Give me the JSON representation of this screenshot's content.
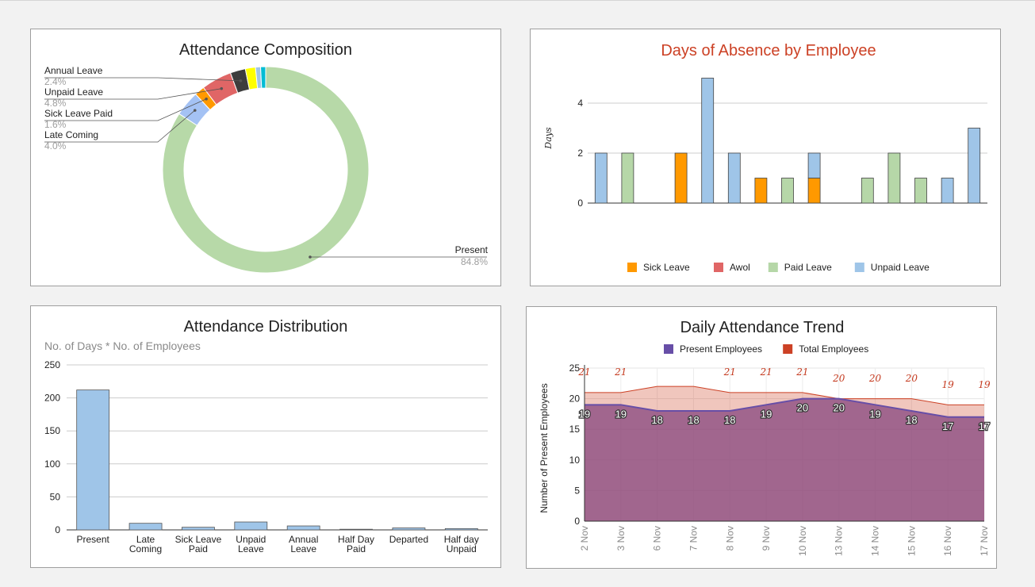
{
  "chart_data": [
    {
      "type": "pie",
      "title": "Attendance Composition",
      "donut": true,
      "slices": [
        {
          "label": "Present",
          "percent": "84.8%",
          "value": 84.8,
          "color": "#b7d9a8"
        },
        {
          "label": "Late Coming",
          "percent": "4.0%",
          "value": 4.0,
          "color": "#a4c2f4"
        },
        {
          "label": "Sick Leave Paid",
          "percent": "1.6%",
          "value": 1.6,
          "color": "#ff9900"
        },
        {
          "label": "Unpaid Leave",
          "percent": "4.8%",
          "value": 4.8,
          "color": "#e06666"
        },
        {
          "label": "Annual Leave",
          "percent": "2.4%",
          "value": 2.4,
          "color": "#3d3d3d"
        },
        {
          "label": "",
          "value": 1.6,
          "color": "#ffff00"
        },
        {
          "label": "",
          "value": 0.8,
          "color": "#9fc5e8"
        },
        {
          "label": "",
          "value": 0.8,
          "color": "#00bcd4"
        }
      ],
      "callouts": [
        "Annual Leave",
        "Unpaid Leave",
        "Sick Leave Paid",
        "Late Coming",
        "Present"
      ]
    },
    {
      "type": "bar",
      "stacked": true,
      "title": "Days of Absence by Employee",
      "title_color": "#cc4125",
      "ylabel": "Days",
      "yticks": [
        0,
        2,
        4
      ],
      "ylim": [
        0,
        5.3
      ],
      "legend_position": "bottom",
      "series": [
        {
          "name": "Sick Leave",
          "color": "#ff9900",
          "values": [
            0,
            0,
            0,
            2,
            0,
            0,
            1,
            0,
            1,
            0,
            0,
            0,
            0,
            0,
            0
          ]
        },
        {
          "name": "Awol",
          "color": "#e06666",
          "values": [
            0,
            0,
            0,
            0,
            0,
            0,
            0,
            0,
            0,
            0,
            0,
            0,
            0,
            0,
            0
          ]
        },
        {
          "name": "Paid Leave",
          "color": "#b6d7a8",
          "values": [
            0,
            2,
            0,
            0,
            0,
            0,
            0,
            1,
            0,
            0,
            1,
            2,
            1,
            0,
            0
          ]
        },
        {
          "name": "Unpaid Leave",
          "color": "#9fc5e8",
          "values": [
            2,
            0,
            0,
            0,
            5,
            2,
            0,
            0,
            1,
            0,
            0,
            0,
            0,
            1,
            3
          ]
        }
      ]
    },
    {
      "type": "bar",
      "title": "Attendance Distribution",
      "subtitle": "No. of Days * No. of Employees",
      "categories": [
        "Present",
        "Late\nComing",
        "Sick Leave\nPaid",
        "Unpaid\nLeave",
        "Annual\nLeave",
        "Half Day\nPaid",
        "Departed",
        "Half day\nUnpaid"
      ],
      "values": [
        212,
        10,
        4,
        12,
        6,
        1,
        3,
        2
      ],
      "yticks": [
        0,
        50,
        100,
        150,
        200,
        250
      ],
      "ylim": [
        0,
        250
      ],
      "color": "#9fc5e8"
    },
    {
      "type": "area",
      "title": "Daily Attendance Trend",
      "ylabel": "Number of Present Employees",
      "x": [
        "2 Nov",
        "3 Nov",
        "6 Nov",
        "7 Nov",
        "8 Nov",
        "9 Nov",
        "10 Nov",
        "13 Nov",
        "14 Nov",
        "15 Nov",
        "16 Nov",
        "17 Nov"
      ],
      "ylim": [
        0,
        25
      ],
      "yticks": [
        0,
        5,
        10,
        15,
        20,
        25
      ],
      "legend_position": "top",
      "series": [
        {
          "name": "Present Employees",
          "color": "#674ea7",
          "values": [
            19,
            19,
            18,
            18,
            18,
            19,
            20,
            20,
            19,
            18,
            17,
            17
          ],
          "labels": [
            "19",
            "19",
            "18",
            "18",
            "18",
            "19",
            "20",
            "20",
            "19",
            "18",
            "17",
            "17"
          ]
        },
        {
          "name": "Total Employees",
          "color": "#cc4125",
          "values": [
            21,
            21,
            22,
            22,
            21,
            21,
            21,
            20,
            20,
            20,
            19,
            19
          ],
          "labels": [
            "21",
            "21",
            "",
            "",
            "21",
            "21",
            "21",
            "20",
            "20",
            "20",
            "19",
            "19"
          ]
        }
      ]
    }
  ]
}
